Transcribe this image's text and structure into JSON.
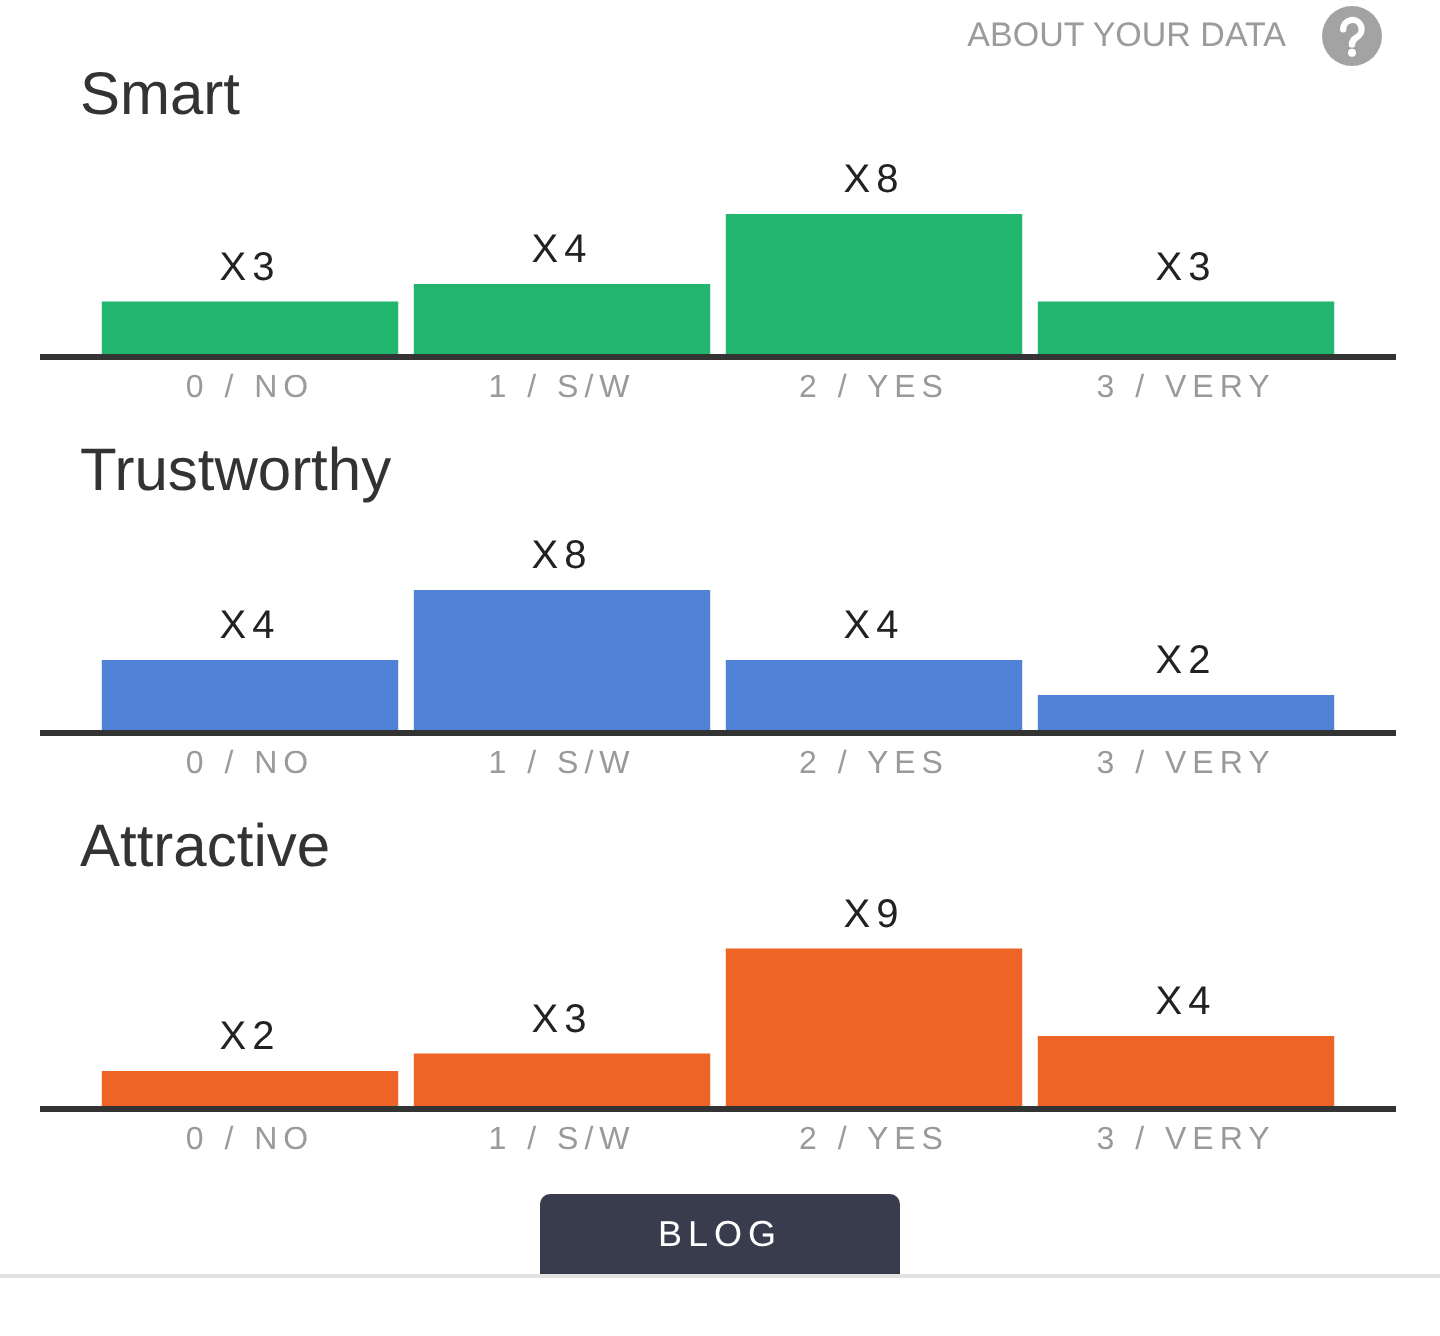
{
  "chart_data": [
    {
      "type": "bar",
      "title": "Smart",
      "categories": [
        "0 / NO",
        "1 / S/W",
        "2 / YES",
        "3 / VERY"
      ],
      "values": [
        3,
        4,
        8,
        3
      ],
      "color": "#21b56e",
      "value_labels": [
        "X3",
        "X4",
        "X8",
        "X3"
      ],
      "tick_labels": "x",
      "annotations": [
        "ABOUT YOUR DATA"
      ]
    },
    {
      "type": "bar",
      "title": "Trustworthy",
      "categories": [
        "0 / NO",
        "1 / S/W",
        "2 / YES",
        "3 / VERY"
      ],
      "values": [
        4,
        8,
        4,
        2
      ],
      "color": "#5082d8",
      "value_labels": [
        "X4",
        "X8",
        "X4",
        "X2"
      ],
      "tick_labels": "x"
    },
    {
      "type": "bar",
      "title": "Attractive",
      "categories": [
        "0 / NO",
        "1 / S/W",
        "2 / YES",
        "3 / VERY"
      ],
      "values": [
        2,
        3,
        9,
        4
      ],
      "color": "#ee6427",
      "value_labels": [
        "X2",
        "X3",
        "X9",
        "X4"
      ],
      "tick_labels": "x",
      "annotations": [
        "BLOG"
      ]
    }
  ]
}
